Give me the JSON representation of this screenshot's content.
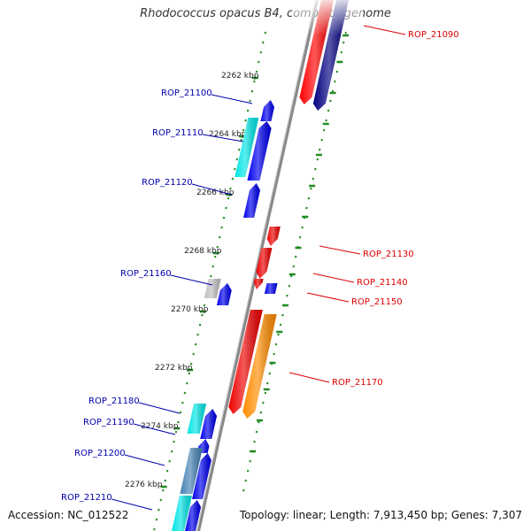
{
  "title": "Rhodococcus opacus B4, complete genome",
  "footer": {
    "accession": "Accession: NC_012522",
    "summary": "Topology: linear; Length: 7,913,450 bp; Genes: 7,307"
  },
  "colors": {
    "left_label": "#0000aa",
    "right_label": "#dd0000",
    "tick": "#228b22"
  },
  "ticks": [
    "2262 kbp",
    "2264 kbp",
    "2266 kbp",
    "2268 kbp",
    "2270 kbp",
    "2272 kbp",
    "2274 kbp",
    "2276 kbp"
  ],
  "genes_left": [
    "ROP_21100",
    "ROP_21110",
    "ROP_21120",
    "ROP_21160",
    "ROP_21180",
    "ROP_21190",
    "ROP_21200",
    "ROP_21210"
  ],
  "genes_right": [
    "ROP_21090",
    "ROP_21130",
    "ROP_21140",
    "ROP_21150",
    "ROP_21170"
  ]
}
